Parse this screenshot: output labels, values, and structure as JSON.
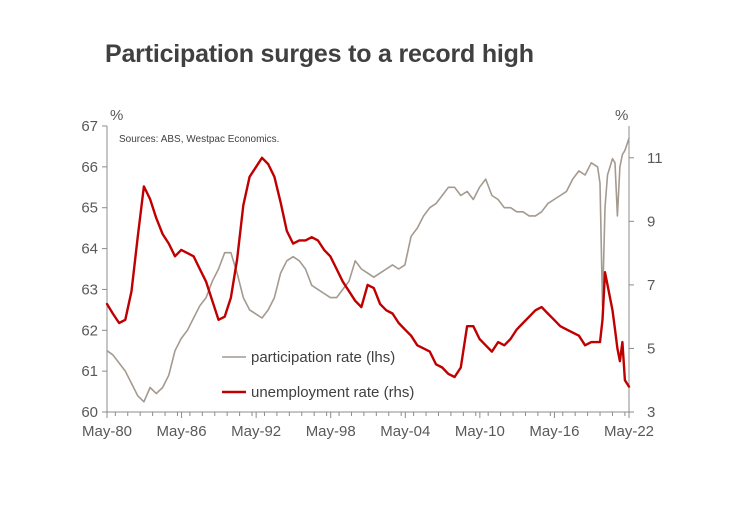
{
  "chart_data": {
    "type": "line",
    "title": "Participation surges to a record high",
    "source": "Sources: ABS, Westpac Economics.",
    "left_unit": "%",
    "right_unit": "%",
    "x_tick_labels": [
      "May-80",
      "May-86",
      "May-92",
      "May-98",
      "May-04",
      "May-10",
      "May-16",
      "May-22"
    ],
    "x_tick_years": [
      1980.33,
      1986.33,
      1992.33,
      1998.33,
      2004.33,
      2010.33,
      2016.33,
      2022.33
    ],
    "xlim": [
      1980.33,
      2022.33
    ],
    "left_ylim": [
      60,
      67
    ],
    "left_ticks": [
      60,
      61,
      62,
      63,
      64,
      65,
      66,
      67
    ],
    "right_ylim": [
      3,
      12
    ],
    "right_ticks": [
      3,
      5,
      7,
      9,
      11
    ],
    "series": [
      {
        "name": "participation rate (lhs)",
        "axis": "left",
        "color": "#a49a90",
        "x": [
          1980.33,
          1980.8,
          1981.3,
          1981.8,
          1982.3,
          1982.8,
          1983.3,
          1983.8,
          1984.3,
          1984.8,
          1985.3,
          1985.8,
          1986.3,
          1986.8,
          1987.3,
          1987.8,
          1988.3,
          1988.8,
          1989.3,
          1989.8,
          1990.3,
          1990.8,
          1991.3,
          1991.8,
          1992.3,
          1992.8,
          1993.3,
          1993.8,
          1994.3,
          1994.8,
          1995.3,
          1995.8,
          1996.3,
          1996.8,
          1997.3,
          1997.8,
          1998.3,
          1998.8,
          1999.3,
          1999.8,
          2000.3,
          2000.8,
          2001.3,
          2001.8,
          2002.3,
          2002.8,
          2003.3,
          2003.8,
          2004.3,
          2004.8,
          2005.3,
          2005.8,
          2006.3,
          2006.8,
          2007.3,
          2007.8,
          2008.3,
          2008.8,
          2009.3,
          2009.8,
          2010.3,
          2010.8,
          2011.3,
          2011.8,
          2012.3,
          2012.8,
          2013.3,
          2013.8,
          2014.3,
          2014.8,
          2015.3,
          2015.8,
          2016.3,
          2016.8,
          2017.3,
          2017.8,
          2018.3,
          2018.8,
          2019.3,
          2019.8,
          2020.0,
          2020.2,
          2020.4,
          2020.6,
          2020.8,
          2021.0,
          2021.2,
          2021.4,
          2021.6,
          2021.8,
          2022.0,
          2022.33
        ],
        "values": [
          61.5,
          61.4,
          61.2,
          61.0,
          60.7,
          60.4,
          60.25,
          60.6,
          60.45,
          60.6,
          60.9,
          61.5,
          61.8,
          62.0,
          62.3,
          62.6,
          62.8,
          63.2,
          63.5,
          63.9,
          63.9,
          63.4,
          62.8,
          62.5,
          62.4,
          62.3,
          62.5,
          62.8,
          63.4,
          63.7,
          63.8,
          63.7,
          63.5,
          63.1,
          63.0,
          62.9,
          62.8,
          62.8,
          63.0,
          63.2,
          63.7,
          63.5,
          63.4,
          63.3,
          63.4,
          63.5,
          63.6,
          63.5,
          63.6,
          64.3,
          64.5,
          64.8,
          65.0,
          65.1,
          65.3,
          65.5,
          65.5,
          65.3,
          65.4,
          65.2,
          65.5,
          65.7,
          65.3,
          65.2,
          65.0,
          65.0,
          64.9,
          64.9,
          64.8,
          64.8,
          64.9,
          65.1,
          65.2,
          65.3,
          65.4,
          65.7,
          65.9,
          65.8,
          66.1,
          66.0,
          65.6,
          62.6,
          65.0,
          65.8,
          66.0,
          66.2,
          66.1,
          64.8,
          66.0,
          66.3,
          66.4,
          66.7
        ]
      },
      {
        "name": "unemployment rate (rhs)",
        "axis": "right",
        "color": "#c00000",
        "x": [
          1980.33,
          1980.8,
          1981.3,
          1981.8,
          1982.3,
          1982.8,
          1983.3,
          1983.8,
          1984.3,
          1984.8,
          1985.3,
          1985.8,
          1986.3,
          1986.8,
          1987.3,
          1987.8,
          1988.3,
          1988.8,
          1989.3,
          1989.8,
          1990.3,
          1990.8,
          1991.3,
          1991.8,
          1992.3,
          1992.8,
          1993.3,
          1993.8,
          1994.3,
          1994.8,
          1995.3,
          1995.8,
          1996.3,
          1996.8,
          1997.3,
          1997.8,
          1998.3,
          1998.8,
          1999.3,
          1999.8,
          2000.3,
          2000.8,
          2001.3,
          2001.8,
          2002.3,
          2002.8,
          2003.3,
          2003.8,
          2004.3,
          2004.8,
          2005.3,
          2005.8,
          2006.3,
          2006.8,
          2007.3,
          2007.8,
          2008.3,
          2008.8,
          2009.3,
          2009.8,
          2010.3,
          2010.8,
          2011.3,
          2011.8,
          2012.3,
          2012.8,
          2013.3,
          2013.8,
          2014.3,
          2014.8,
          2015.3,
          2015.8,
          2016.3,
          2016.8,
          2017.3,
          2017.8,
          2018.3,
          2018.8,
          2019.3,
          2019.8,
          2020.0,
          2020.2,
          2020.4,
          2020.6,
          2020.8,
          2021.0,
          2021.2,
          2021.4,
          2021.6,
          2021.8,
          2022.0,
          2022.33
        ],
        "values": [
          6.4,
          6.1,
          5.8,
          5.9,
          6.8,
          8.5,
          10.1,
          9.7,
          9.1,
          8.6,
          8.3,
          7.9,
          8.1,
          8.0,
          7.9,
          7.5,
          7.1,
          6.5,
          5.9,
          6.0,
          6.6,
          7.8,
          9.5,
          10.4,
          10.7,
          11.0,
          10.8,
          10.4,
          9.6,
          8.7,
          8.3,
          8.4,
          8.4,
          8.5,
          8.4,
          8.1,
          7.9,
          7.5,
          7.1,
          6.8,
          6.5,
          6.3,
          7.0,
          6.9,
          6.4,
          6.2,
          6.1,
          5.8,
          5.6,
          5.4,
          5.1,
          5.0,
          4.9,
          4.5,
          4.4,
          4.2,
          4.1,
          4.4,
          5.7,
          5.7,
          5.3,
          5.1,
          4.9,
          5.2,
          5.1,
          5.3,
          5.6,
          5.8,
          6.0,
          6.2,
          6.3,
          6.1,
          5.9,
          5.7,
          5.6,
          5.5,
          5.4,
          5.1,
          5.2,
          5.2,
          5.2,
          5.9,
          7.4,
          7.0,
          6.6,
          6.2,
          5.6,
          5.0,
          4.6,
          5.2,
          4.0,
          3.8
        ]
      }
    ]
  }
}
